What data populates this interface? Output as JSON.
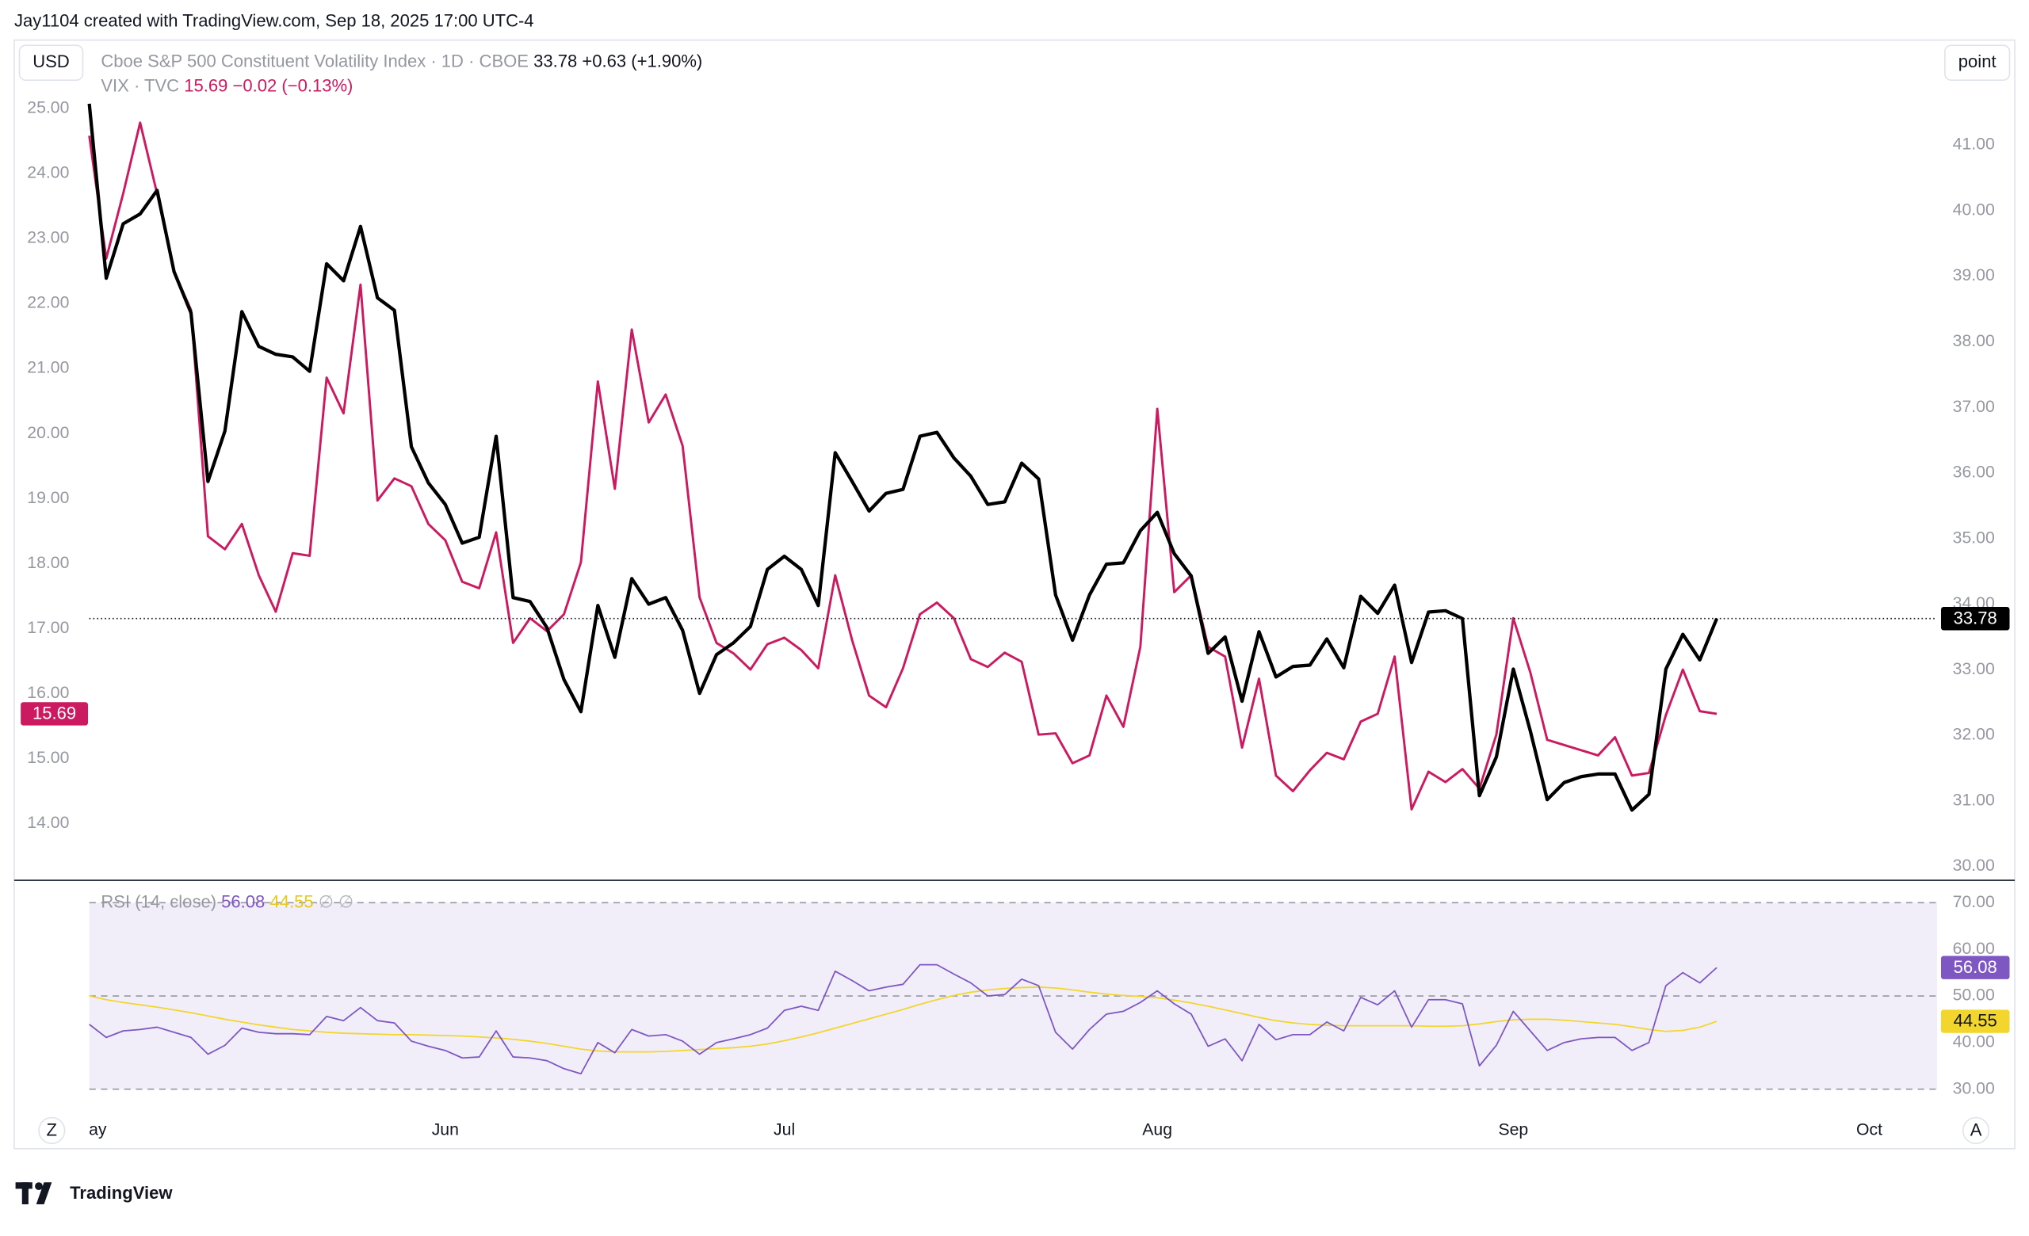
{
  "header": "Jay1104 created with TradingView.com, Sep 18, 2025 17:00 UTC-4",
  "currency": "USD",
  "unit": "point",
  "logo": "TradingView",
  "buttons": [
    "Z",
    "A"
  ],
  "chart_data": [
    {
      "type": "line",
      "xlim": [
        0,
        109
      ],
      "ylim": [
        13.14,
        26.07
      ],
      "yticks": [
        {
          "value": 14,
          "label": "14.00"
        },
        {
          "value": 15,
          "label": "15.00"
        },
        {
          "value": 16,
          "label": "16.00"
        },
        {
          "value": 17,
          "label": "17.00"
        },
        {
          "value": 18,
          "label": "18.00"
        },
        {
          "value": 19,
          "label": "19.00"
        },
        {
          "value": 20,
          "label": "20.00"
        },
        {
          "value": 21,
          "label": "21.00"
        },
        {
          "value": 22,
          "label": "22.00"
        },
        {
          "value": 23,
          "label": "23.00"
        },
        {
          "value": 24,
          "label": "24.00"
        },
        {
          "value": 25,
          "label": "25.00"
        }
      ],
      "y2lim": [
        29.8,
        42.62
      ],
      "y2ticks": [
        {
          "value": 30,
          "label": "30.00"
        },
        {
          "value": 31,
          "label": "31.00"
        },
        {
          "value": 32,
          "label": "32.00"
        },
        {
          "value": 33,
          "label": "33.00"
        },
        {
          "value": 34,
          "label": "34.00"
        },
        {
          "value": 35,
          "label": "35.00"
        },
        {
          "value": 36,
          "label": "36.00"
        },
        {
          "value": 37,
          "label": "37.00"
        },
        {
          "value": 38,
          "label": "38.00"
        },
        {
          "value": 39,
          "label": "39.00"
        },
        {
          "value": 40,
          "label": "40.00"
        },
        {
          "value": 41,
          "label": "41.00"
        }
      ],
      "series": [
        {
          "name": "Cboe S&P 500 Constituent Volatility Index · 1D · CBOE",
          "change": "+0.63 (+1.90%)",
          "color": "#000000",
          "axis": "y2",
          "values": [
            41.63,
            38.97,
            39.8,
            39.95,
            40.31,
            39.07,
            38.44,
            35.87,
            36.64,
            38.46,
            37.93,
            37.81,
            37.77,
            37.55,
            39.19,
            38.93,
            39.76,
            38.67,
            38.48,
            36.4,
            35.85,
            35.52,
            34.93,
            35.02,
            36.56,
            34.1,
            34.04,
            33.64,
            32.85,
            32.36,
            33.98,
            33.19,
            34.39,
            34.0,
            34.1,
            33.6,
            32.64,
            33.23,
            33.41,
            33.66,
            34.53,
            34.73,
            34.53,
            33.98,
            36.31,
            35.87,
            35.42,
            35.69,
            35.75,
            36.56,
            36.62,
            36.23,
            35.95,
            35.52,
            35.56,
            36.15,
            35.91,
            34.14,
            33.45,
            34.14,
            34.61,
            34.63,
            35.12,
            35.4,
            34.77,
            34.43,
            33.25,
            33.5,
            32.52,
            33.58,
            32.89,
            33.05,
            33.07,
            33.47,
            33.03,
            34.12,
            33.86,
            34.29,
            33.11,
            33.88,
            33.9,
            33.78,
            31.08,
            31.67,
            33.01,
            32.07,
            31.02,
            31.28,
            31.37,
            31.41,
            31.41,
            30.86,
            31.1,
            33.01,
            33.54,
            33.15,
            33.78
          ]
        },
        {
          "name": "VIX · TVC",
          "change": "−0.02 (−0.13%)",
          "color": "#cc1a60",
          "values": [
            24.58,
            22.69,
            23.69,
            24.78,
            23.69,
            22.49,
            21.9,
            18.42,
            18.22,
            18.61,
            17.82,
            17.26,
            18.16,
            18.12,
            20.86,
            20.31,
            22.29,
            18.97,
            19.31,
            19.19,
            18.61,
            18.36,
            17.72,
            17.62,
            18.48,
            16.78,
            17.16,
            16.96,
            17.22,
            18.02,
            20.8,
            19.15,
            21.6,
            20.17,
            20.6,
            19.81,
            17.48,
            16.78,
            16.62,
            16.37,
            16.76,
            16.86,
            16.67,
            16.39,
            17.82,
            16.82,
            15.97,
            15.79,
            16.39,
            17.22,
            17.4,
            17.16,
            16.53,
            16.41,
            16.63,
            16.49,
            15.37,
            15.39,
            14.93,
            15.05,
            15.97,
            15.49,
            16.72,
            20.38,
            17.56,
            17.82,
            16.72,
            16.57,
            15.17,
            16.23,
            14.74,
            14.5,
            14.82,
            15.09,
            14.99,
            15.57,
            15.69,
            16.57,
            14.22,
            14.8,
            14.64,
            14.84,
            14.54,
            15.37,
            17.16,
            16.33,
            15.29,
            15.21,
            15.13,
            15.05,
            15.33,
            14.74,
            14.78,
            15.67,
            16.37,
            15.73,
            15.69
          ]
        }
      ]
    },
    {
      "type": "line",
      "title": "RSI (14, close)",
      "legend_suffix": "∅ ∅",
      "xlim": [
        0,
        109
      ],
      "xticks": [
        {
          "value": 0.5,
          "label": "ay"
        },
        {
          "value": 21,
          "label": "Jun"
        },
        {
          "value": 41,
          "label": "Jul"
        },
        {
          "value": 63,
          "label": "Aug"
        },
        {
          "value": 84,
          "label": "Sep"
        },
        {
          "value": 105,
          "label": "Oct"
        }
      ],
      "ylim": [
        25,
        74.4
      ],
      "yticks": [
        {
          "value": 30,
          "label": "30.00"
        },
        {
          "value": 40,
          "label": "40.00"
        },
        {
          "value": 50,
          "label": "50.00"
        },
        {
          "value": 60,
          "label": "60.00"
        },
        {
          "value": 70,
          "label": "70.00"
        }
      ],
      "series": [
        {
          "color": "#7e57c2",
          "values": [
            43.9,
            41.1,
            42.5,
            42.8,
            43.3,
            42.2,
            41.1,
            37.5,
            39.4,
            43.1,
            42.2,
            41.9,
            41.9,
            41.7,
            45.6,
            44.7,
            47.5,
            44.7,
            44.2,
            40.3,
            39.2,
            38.3,
            36.7,
            36.9,
            42.5,
            36.9,
            36.7,
            36.1,
            34.4,
            33.3,
            40.0,
            37.8,
            42.8,
            41.4,
            41.7,
            40.3,
            37.5,
            40.0,
            40.8,
            41.7,
            43.1,
            46.9,
            47.8,
            46.9,
            55.3,
            53.3,
            51.1,
            51.9,
            52.5,
            56.7,
            56.7,
            54.7,
            52.8,
            50.0,
            50.3,
            53.6,
            52.2,
            42.2,
            38.6,
            42.8,
            46.1,
            46.7,
            48.6,
            51.1,
            48.3,
            46.1,
            39.2,
            40.8,
            36.1,
            43.9,
            40.6,
            41.7,
            41.7,
            44.4,
            42.5,
            49.7,
            48.1,
            51.1,
            43.3,
            49.2,
            49.2,
            48.3,
            35.0,
            39.4,
            46.7,
            42.5,
            38.3,
            40.0,
            40.8,
            41.1,
            41.1,
            38.3,
            40.0,
            52.2,
            55.0,
            52.8,
            56.08
          ]
        },
        {
          "color": "#f2d62e",
          "values": [
            50.0,
            49.2,
            48.6,
            48.1,
            47.6,
            47.0,
            46.4,
            45.7,
            45.0,
            44.4,
            43.8,
            43.3,
            42.8,
            42.5,
            42.2,
            42.0,
            41.9,
            41.8,
            41.7,
            41.7,
            41.6,
            41.5,
            41.4,
            41.2,
            41.0,
            40.7,
            40.3,
            39.8,
            39.2,
            38.6,
            38.2,
            38.0,
            38.0,
            38.0,
            38.1,
            38.3,
            38.5,
            38.7,
            38.9,
            39.2,
            39.7,
            40.4,
            41.2,
            42.1,
            43.1,
            44.1,
            45.1,
            46.1,
            47.1,
            48.2,
            49.2,
            50.1,
            50.8,
            51.3,
            51.6,
            51.8,
            51.9,
            51.7,
            51.3,
            50.8,
            50.4,
            50.1,
            49.9,
            49.6,
            49.1,
            48.5,
            47.8,
            47.0,
            46.2,
            45.4,
            44.7,
            44.2,
            43.9,
            43.7,
            43.6,
            43.6,
            43.6,
            43.6,
            43.6,
            43.5,
            43.5,
            43.6,
            44.0,
            44.5,
            44.9,
            45.0,
            45.0,
            44.8,
            44.5,
            44.2,
            43.9,
            43.4,
            42.8,
            42.4,
            42.6,
            43.3,
            44.55
          ]
        }
      ]
    }
  ]
}
